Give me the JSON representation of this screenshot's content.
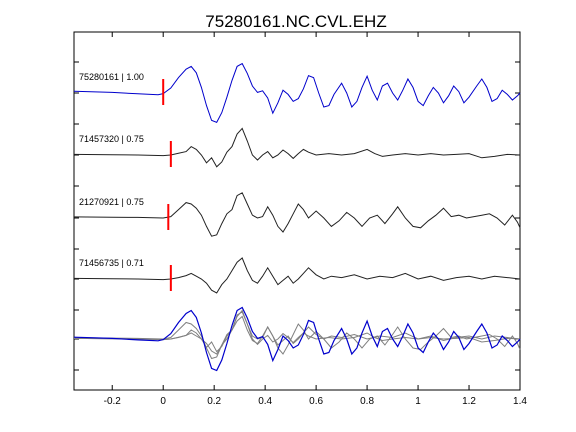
{
  "figure": {
    "title": "75280161.NC.CVL.EHZ"
  },
  "chart_data": {
    "type": "line",
    "title": "75280161.NC.CVL.EHZ",
    "xlabel": "",
    "ylabel": "",
    "xlim": [
      -0.35,
      1.4
    ],
    "xticks": [
      -0.2,
      0,
      0.2,
      0.4,
      0.6,
      0.8,
      1,
      1.2,
      1.4
    ],
    "xtick_labels": [
      "-0.2",
      "0",
      "0.2",
      "0.4",
      "0.6",
      "0.8",
      "1",
      "1.2",
      "1.4"
    ],
    "grid": false,
    "colors": {
      "master": "#0000cc",
      "trace": "#222222",
      "overlay": "#808080",
      "pick": "#ff0000"
    },
    "traces": [
      {
        "label": "75280161 | 1.00",
        "color": "#0000cc",
        "pick_time": 0.0,
        "points": [
          [
            -0.35,
            0.06
          ],
          [
            -0.2,
            0.02
          ],
          [
            -0.1,
            -0.03
          ],
          [
            -0.02,
            -0.06
          ],
          [
            0.0,
            -0.02
          ],
          [
            0.03,
            0.18
          ],
          [
            0.06,
            0.55
          ],
          [
            0.09,
            0.85
          ],
          [
            0.11,
            0.95
          ],
          [
            0.13,
            0.72
          ],
          [
            0.15,
            0.2
          ],
          [
            0.17,
            -0.45
          ],
          [
            0.19,
            -0.98
          ],
          [
            0.21,
            -1.05
          ],
          [
            0.23,
            -0.7
          ],
          [
            0.25,
            -0.15
          ],
          [
            0.27,
            0.45
          ],
          [
            0.29,
            0.95
          ],
          [
            0.31,
            1.05
          ],
          [
            0.33,
            0.7
          ],
          [
            0.35,
            0.25
          ],
          [
            0.37,
            0.02
          ],
          [
            0.39,
            0.08
          ],
          [
            0.41,
            -0.18
          ],
          [
            0.43,
            -0.72
          ],
          [
            0.45,
            -0.35
          ],
          [
            0.47,
            0.1
          ],
          [
            0.49,
            -0.05
          ],
          [
            0.51,
            -0.3
          ],
          [
            0.53,
            -0.2
          ],
          [
            0.55,
            0.15
          ],
          [
            0.57,
            0.62
          ],
          [
            0.59,
            0.55
          ],
          [
            0.61,
            0.0
          ],
          [
            0.63,
            -0.5
          ],
          [
            0.65,
            -0.45
          ],
          [
            0.67,
            -0.05
          ],
          [
            0.7,
            0.35
          ],
          [
            0.72,
            0.0
          ],
          [
            0.74,
            -0.5
          ],
          [
            0.76,
            -0.3
          ],
          [
            0.78,
            0.2
          ],
          [
            0.8,
            0.6
          ],
          [
            0.82,
            0.1
          ],
          [
            0.84,
            -0.25
          ],
          [
            0.86,
            0.25
          ],
          [
            0.88,
            0.35
          ],
          [
            0.9,
            0.0
          ],
          [
            0.92,
            -0.25
          ],
          [
            0.94,
            0.1
          ],
          [
            0.96,
            0.5
          ],
          [
            0.98,
            0.2
          ],
          [
            1.0,
            -0.3
          ],
          [
            1.02,
            -0.45
          ],
          [
            1.04,
            -0.1
          ],
          [
            1.06,
            0.2
          ],
          [
            1.08,
            0.0
          ],
          [
            1.1,
            -0.35
          ],
          [
            1.12,
            -0.1
          ],
          [
            1.14,
            0.25
          ],
          [
            1.16,
            0.05
          ],
          [
            1.18,
            -0.35
          ],
          [
            1.2,
            -0.15
          ],
          [
            1.23,
            0.25
          ],
          [
            1.25,
            0.5
          ],
          [
            1.27,
            0.2
          ],
          [
            1.29,
            -0.3
          ],
          [
            1.31,
            -0.2
          ],
          [
            1.33,
            0.1
          ],
          [
            1.35,
            -0.05
          ],
          [
            1.37,
            -0.25
          ],
          [
            1.39,
            -0.1
          ],
          [
            1.4,
            0.0
          ]
        ]
      },
      {
        "label": "71457320 | 0.75",
        "color": "#222222",
        "pick_time": 0.03,
        "points": [
          [
            -0.35,
            0.02
          ],
          [
            -0.2,
            0.01
          ],
          [
            -0.1,
            0.0
          ],
          [
            0.0,
            -0.02
          ],
          [
            0.03,
            0.0
          ],
          [
            0.06,
            0.06
          ],
          [
            0.09,
            0.12
          ],
          [
            0.11,
            0.3
          ],
          [
            0.13,
            0.2
          ],
          [
            0.15,
            0.0
          ],
          [
            0.17,
            -0.28
          ],
          [
            0.19,
            -0.1
          ],
          [
            0.21,
            -0.42
          ],
          [
            0.23,
            -0.25
          ],
          [
            0.25,
            0.1
          ],
          [
            0.27,
            0.3
          ],
          [
            0.29,
            0.75
          ],
          [
            0.31,
            0.95
          ],
          [
            0.33,
            0.5
          ],
          [
            0.35,
            0.0
          ],
          [
            0.37,
            -0.18
          ],
          [
            0.39,
            0.0
          ],
          [
            0.41,
            0.12
          ],
          [
            0.43,
            -0.1
          ],
          [
            0.45,
            0.0
          ],
          [
            0.47,
            0.18
          ],
          [
            0.49,
            0.05
          ],
          [
            0.51,
            -0.12
          ],
          [
            0.53,
            0.05
          ],
          [
            0.55,
            0.2
          ],
          [
            0.57,
            0.1
          ],
          [
            0.6,
            0.0
          ],
          [
            0.65,
            0.05
          ],
          [
            0.7,
            0.0
          ],
          [
            0.75,
            0.05
          ],
          [
            0.8,
            0.2
          ],
          [
            0.83,
            0.05
          ],
          [
            0.86,
            -0.05
          ],
          [
            0.9,
            0.0
          ],
          [
            0.95,
            0.05
          ],
          [
            1.0,
            0.0
          ],
          [
            1.05,
            0.05
          ],
          [
            1.1,
            0.0
          ],
          [
            1.15,
            0.02
          ],
          [
            1.2,
            0.05
          ],
          [
            1.25,
            -0.1
          ],
          [
            1.3,
            -0.05
          ],
          [
            1.35,
            0.02
          ],
          [
            1.4,
            0.0
          ]
        ]
      },
      {
        "label": "21270921 | 0.75",
        "color": "#222222",
        "pick_time": 0.02,
        "points": [
          [
            -0.35,
            0.04
          ],
          [
            -0.2,
            0.03
          ],
          [
            -0.1,
            0.02
          ],
          [
            0.0,
            0.0
          ],
          [
            0.03,
            0.05
          ],
          [
            0.06,
            0.3
          ],
          [
            0.09,
            0.55
          ],
          [
            0.11,
            0.5
          ],
          [
            0.13,
            0.35
          ],
          [
            0.15,
            0.1
          ],
          [
            0.17,
            -0.3
          ],
          [
            0.19,
            -0.65
          ],
          [
            0.21,
            -0.6
          ],
          [
            0.23,
            -0.2
          ],
          [
            0.25,
            0.15
          ],
          [
            0.27,
            0.3
          ],
          [
            0.29,
            0.8
          ],
          [
            0.31,
            0.9
          ],
          [
            0.33,
            0.5
          ],
          [
            0.35,
            0.1
          ],
          [
            0.37,
            0.0
          ],
          [
            0.39,
            0.05
          ],
          [
            0.41,
            0.4
          ],
          [
            0.43,
            0.1
          ],
          [
            0.45,
            -0.3
          ],
          [
            0.47,
            -0.5
          ],
          [
            0.49,
            -0.2
          ],
          [
            0.51,
            0.15
          ],
          [
            0.53,
            0.5
          ],
          [
            0.55,
            0.3
          ],
          [
            0.57,
            0.0
          ],
          [
            0.6,
            0.25
          ],
          [
            0.63,
            0.0
          ],
          [
            0.66,
            -0.3
          ],
          [
            0.69,
            -0.1
          ],
          [
            0.72,
            0.2
          ],
          [
            0.75,
            0.0
          ],
          [
            0.78,
            -0.3
          ],
          [
            0.81,
            0.0
          ],
          [
            0.84,
            0.1
          ],
          [
            0.87,
            -0.2
          ],
          [
            0.9,
            0.15
          ],
          [
            0.92,
            0.4
          ],
          [
            0.95,
            0.0
          ],
          [
            0.98,
            -0.3
          ],
          [
            1.01,
            -0.35
          ],
          [
            1.04,
            -0.1
          ],
          [
            1.07,
            0.1
          ],
          [
            1.1,
            0.35
          ],
          [
            1.13,
            0.05
          ],
          [
            1.16,
            0.1
          ],
          [
            1.19,
            0.0
          ],
          [
            1.22,
            0.05
          ],
          [
            1.25,
            0.1
          ],
          [
            1.28,
            0.15
          ],
          [
            1.31,
            0.0
          ],
          [
            1.34,
            -0.25
          ],
          [
            1.37,
            0.1
          ],
          [
            1.39,
            -0.15
          ],
          [
            1.4,
            -0.35
          ]
        ]
      },
      {
        "label": "71456735 | 0.71",
        "color": "#222222",
        "pick_time": 0.03,
        "points": [
          [
            -0.35,
            0.02
          ],
          [
            -0.2,
            0.01
          ],
          [
            -0.1,
            0.0
          ],
          [
            0.0,
            -0.02
          ],
          [
            0.03,
            0.0
          ],
          [
            0.06,
            0.05
          ],
          [
            0.09,
            0.12
          ],
          [
            0.11,
            0.2
          ],
          [
            0.13,
            0.1
          ],
          [
            0.15,
            0.0
          ],
          [
            0.17,
            -0.15
          ],
          [
            0.19,
            -0.4
          ],
          [
            0.21,
            -0.5
          ],
          [
            0.23,
            -0.2
          ],
          [
            0.25,
            0.0
          ],
          [
            0.27,
            0.3
          ],
          [
            0.29,
            0.6
          ],
          [
            0.31,
            0.75
          ],
          [
            0.33,
            0.3
          ],
          [
            0.35,
            -0.05
          ],
          [
            0.37,
            -0.15
          ],
          [
            0.39,
            0.1
          ],
          [
            0.41,
            0.4
          ],
          [
            0.43,
            0.1
          ],
          [
            0.45,
            -0.2
          ],
          [
            0.47,
            -0.05
          ],
          [
            0.49,
            0.1
          ],
          [
            0.51,
            -0.15
          ],
          [
            0.53,
            0.0
          ],
          [
            0.55,
            0.2
          ],
          [
            0.57,
            0.4
          ],
          [
            0.6,
            0.15
          ],
          [
            0.63,
            0.0
          ],
          [
            0.66,
            0.1
          ],
          [
            0.7,
            0.05
          ],
          [
            0.75,
            0.15
          ],
          [
            0.8,
            0.0
          ],
          [
            0.85,
            0.1
          ],
          [
            0.9,
            0.05
          ],
          [
            0.95,
            0.2
          ],
          [
            1.0,
            0.0
          ],
          [
            1.05,
            0.1
          ],
          [
            1.1,
            -0.05
          ],
          [
            1.15,
            0.05
          ],
          [
            1.2,
            0.1
          ],
          [
            1.25,
            0.0
          ],
          [
            1.3,
            0.1
          ],
          [
            1.35,
            0.05
          ],
          [
            1.4,
            0.0
          ]
        ]
      }
    ]
  }
}
